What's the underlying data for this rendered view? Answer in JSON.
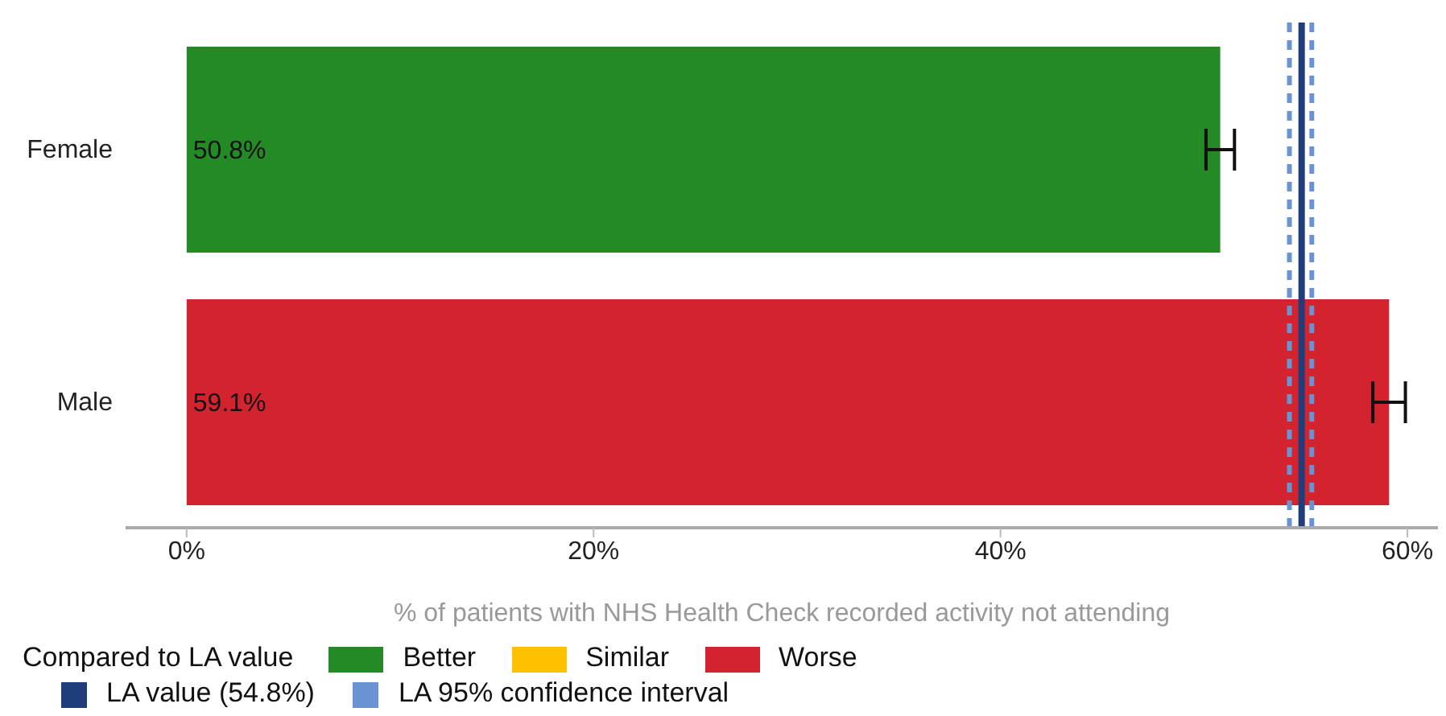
{
  "chart_data": {
    "type": "bar",
    "orientation": "horizontal",
    "stacked": true,
    "categories": [
      "Female",
      "Male"
    ],
    "series": [
      {
        "name": "Better",
        "color": "#248a26",
        "values": [
          50.8,
          null
        ],
        "errors": [
          0.7,
          null
        ],
        "value_labels": [
          "50.8%",
          null
        ]
      },
      {
        "name": "Similar",
        "color": "#ffc000",
        "values": [
          null,
          null
        ]
      },
      {
        "name": "Worse",
        "color": "#d2232e",
        "values": [
          null,
          59.1
        ],
        "errors": [
          null,
          0.8
        ],
        "value_labels": [
          null,
          "59.1%"
        ]
      }
    ],
    "xlim": [
      -3,
      61.5
    ],
    "xticks": [
      {
        "value": 0,
        "label": "0%"
      },
      {
        "value": 20,
        "label": "20%"
      },
      {
        "value": 40,
        "label": "40%"
      },
      {
        "value": 60,
        "label": "60%"
      }
    ],
    "xlabel": "% of patients with NHS Health Check recorded activity not attending",
    "ref_lines": [
      {
        "axis": "x",
        "value": 54.2,
        "label": "LA 95% confidence interval",
        "color": "#6a93d4",
        "line_style": "dashed"
      },
      {
        "axis": "x",
        "value": 55.3,
        "color": "#6a93d4",
        "line_style": "dashed"
      },
      {
        "axis": "x",
        "value": 54.8,
        "label": "LA value (54.8%)",
        "color": "#1f3d7a",
        "line_style": "solid"
      }
    ],
    "legend": "bottom",
    "legend_title": "Compared to LA value",
    "grid": false
  }
}
